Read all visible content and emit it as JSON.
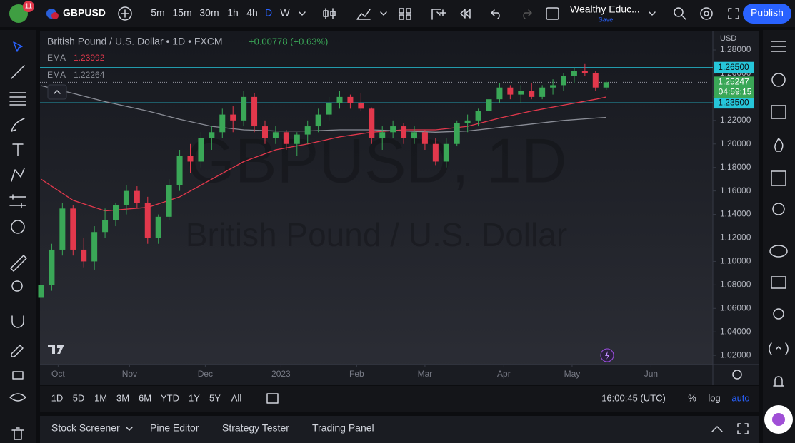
{
  "top_bar": {
    "alerts_badge": "11",
    "symbol": "GBPUSD",
    "intervals": [
      "5m",
      "15m",
      "30m",
      "1h",
      "4h",
      "D",
      "W"
    ],
    "layout_name": "Wealthy Educ...",
    "save": "Save",
    "publish": "Publish"
  },
  "chart_data": {
    "type": "candlestick",
    "legend_title": "British Pound / U.S. Dollar • 1D • FXCM",
    "change": "+0.00778 (+0.63%)",
    "watermark": [
      "GBPUSD, 1D",
      "British Pound / U.S. Dollar"
    ],
    "currency": "USD",
    "up_color": "#3aa757",
    "down_color": "#e2384c",
    "grid": false,
    "xlim": [
      -0.1,
      63
    ],
    "xticks": [
      {
        "value": 1.6,
        "label": "Oct"
      },
      {
        "value": 8.3,
        "label": "Nov"
      },
      {
        "value": 15.4,
        "label": "Dec"
      },
      {
        "value": 22.5,
        "label": "2023"
      },
      {
        "value": 29.6,
        "label": "Feb"
      },
      {
        "value": 36.0,
        "label": "Mar"
      },
      {
        "value": 43.4,
        "label": "Apr"
      },
      {
        "value": 49.8,
        "label": "May"
      },
      {
        "value": 57.2,
        "label": "Jun"
      }
    ],
    "ylim": [
      1.0122,
      1.2958
    ],
    "yticks": [
      {
        "value": 1.02,
        "label": "1.02000"
      },
      {
        "value": 1.04,
        "label": "1.04000"
      },
      {
        "value": 1.06,
        "label": "1.06000"
      },
      {
        "value": 1.08,
        "label": "1.08000"
      },
      {
        "value": 1.1,
        "label": "1.10000"
      },
      {
        "value": 1.12,
        "label": "1.12000"
      },
      {
        "value": 1.14,
        "label": "1.14000"
      },
      {
        "value": 1.16,
        "label": "1.16000"
      },
      {
        "value": 1.18,
        "label": "1.18000"
      },
      {
        "value": 1.2,
        "label": "1.20000"
      },
      {
        "value": 1.22,
        "label": "1.22000"
      },
      {
        "value": 1.24,
        "label": "1.24000"
      },
      {
        "value": 1.26,
        "label": "1.26000"
      },
      {
        "value": 1.28,
        "label": "1.28000"
      }
    ],
    "candles": [
      [
        1.069,
        1.085,
        1.038,
        1.08
      ],
      [
        1.08,
        1.115,
        1.075,
        1.11
      ],
      [
        1.11,
        1.15,
        1.105,
        1.145
      ],
      [
        1.145,
        1.148,
        1.105,
        1.11
      ],
      [
        1.11,
        1.12,
        1.095,
        1.1
      ],
      [
        1.1,
        1.13,
        1.093,
        1.125
      ],
      [
        1.125,
        1.145,
        1.12,
        1.135
      ],
      [
        1.135,
        1.15,
        1.13,
        1.148
      ],
      [
        1.148,
        1.165,
        1.14,
        1.16
      ],
      [
        1.16,
        1.164,
        1.145,
        1.15
      ],
      [
        1.15,
        1.155,
        1.115,
        1.12
      ],
      [
        1.12,
        1.14,
        1.115,
        1.138
      ],
      [
        1.138,
        1.17,
        1.135,
        1.165
      ],
      [
        1.165,
        1.195,
        1.16,
        1.19
      ],
      [
        1.19,
        1.2,
        1.175,
        1.185
      ],
      [
        1.185,
        1.21,
        1.18,
        1.205
      ],
      [
        1.205,
        1.215,
        1.195,
        1.21
      ],
      [
        1.21,
        1.23,
        1.205,
        1.225
      ],
      [
        1.225,
        1.232,
        1.21,
        1.22
      ],
      [
        1.22,
        1.245,
        1.215,
        1.24
      ],
      [
        1.24,
        1.243,
        1.21,
        1.215
      ],
      [
        1.215,
        1.22,
        1.2,
        1.205
      ],
      [
        1.205,
        1.215,
        1.2,
        1.21
      ],
      [
        1.21,
        1.212,
        1.195,
        1.2
      ],
      [
        1.2,
        1.21,
        1.19,
        1.208
      ],
      [
        1.208,
        1.22,
        1.2,
        1.215
      ],
      [
        1.215,
        1.23,
        1.21,
        1.225
      ],
      [
        1.225,
        1.24,
        1.22,
        1.235
      ],
      [
        1.235,
        1.245,
        1.23,
        1.24
      ],
      [
        1.24,
        1.242,
        1.23,
        1.235
      ],
      [
        1.235,
        1.243,
        1.228,
        1.23
      ],
      [
        1.23,
        1.231,
        1.2,
        1.205
      ],
      [
        1.205,
        1.215,
        1.195,
        1.21
      ],
      [
        1.21,
        1.22,
        1.205,
        1.215
      ],
      [
        1.215,
        1.218,
        1.2,
        1.205
      ],
      [
        1.205,
        1.215,
        1.2,
        1.21
      ],
      [
        1.21,
        1.212,
        1.195,
        1.2
      ],
      [
        1.2,
        1.205,
        1.182,
        1.185
      ],
      [
        1.185,
        1.205,
        1.18,
        1.2
      ],
      [
        1.2,
        1.22,
        1.198,
        1.218
      ],
      [
        1.218,
        1.225,
        1.21,
        1.22
      ],
      [
        1.22,
        1.23,
        1.215,
        1.228
      ],
      [
        1.228,
        1.242,
        1.225,
        1.238
      ],
      [
        1.238,
        1.252,
        1.235,
        1.248
      ],
      [
        1.248,
        1.25,
        1.238,
        1.242
      ],
      [
        1.242,
        1.25,
        1.235,
        1.245
      ],
      [
        1.245,
        1.252,
        1.238,
        1.24
      ],
      [
        1.24,
        1.25,
        1.238,
        1.248
      ],
      [
        1.248,
        1.255,
        1.242,
        1.25
      ],
      [
        1.25,
        1.26,
        1.245,
        1.258
      ],
      [
        1.258,
        1.265,
        1.252,
        1.262
      ],
      [
        1.262,
        1.268,
        1.258,
        1.26
      ],
      [
        1.26,
        1.262,
        1.245,
        1.248
      ],
      [
        1.248,
        1.254,
        1.246,
        1.2525
      ]
    ],
    "series": [
      {
        "name": "EMA",
        "color": "#e2384c",
        "x": [
          0,
          3,
          6,
          10,
          13,
          16,
          19,
          22,
          25,
          28,
          31,
          34,
          37,
          40,
          43,
          46,
          49,
          52,
          53
        ],
        "values": [
          1.17,
          1.152,
          1.143,
          1.146,
          1.155,
          1.17,
          1.185,
          1.195,
          1.2,
          1.206,
          1.21,
          1.212,
          1.212,
          1.215,
          1.222,
          1.228,
          1.233,
          1.238,
          1.23992
        ]
      },
      {
        "name": "EMA",
        "color": "#8a8d96",
        "x": [
          0,
          3,
          6,
          10,
          13,
          16,
          19,
          22,
          25,
          28,
          31,
          34,
          37,
          40,
          43,
          46,
          49,
          52,
          53
        ],
        "values": [
          1.2496,
          1.243,
          1.236,
          1.228,
          1.221,
          1.215,
          1.212,
          1.211,
          1.211,
          1.212,
          1.212,
          1.211,
          1.21,
          1.211,
          1.214,
          1.217,
          1.22,
          1.222,
          1.22264
        ]
      }
    ],
    "hlines": [
      {
        "value": 1.265,
        "label": "1.26500"
      },
      {
        "value": 1.235,
        "label": "1.23500"
      }
    ],
    "hline_color": "#26c6da",
    "last_price": 1.25247,
    "countdown": "04:59:15"
  },
  "range_bar": {
    "ranges": [
      "1D",
      "5D",
      "1M",
      "3M",
      "6M",
      "YTD",
      "1Y",
      "5Y",
      "All"
    ],
    "time": "16:00:45 (UTC)",
    "percent": "%",
    "log": "log",
    "auto": "auto"
  },
  "bottom_panel": {
    "tabs": [
      "Stock Screener",
      "Pine Editor",
      "Strategy Tester",
      "Trading Panel"
    ]
  }
}
